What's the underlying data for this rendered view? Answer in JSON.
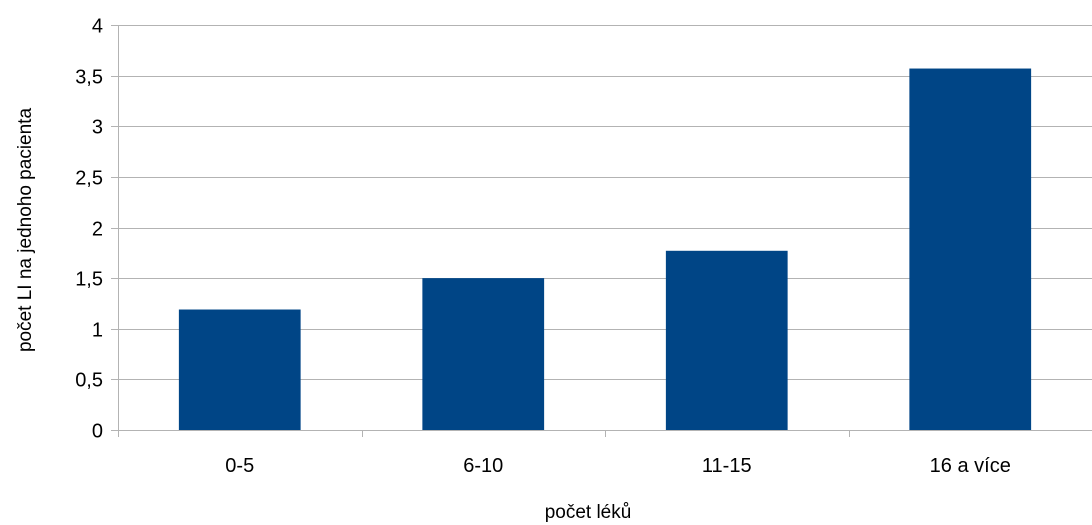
{
  "chart_data": {
    "type": "bar",
    "title": "",
    "xlabel": "počet léků",
    "ylabel": "počet LI na jednoho pacienta",
    "categories": [
      "0-5",
      "6-10",
      "11-15",
      "16 a více"
    ],
    "values": [
      1.19,
      1.5,
      1.77,
      3.57
    ],
    "ylim": [
      0,
      4
    ],
    "yticks": [
      0,
      0.5,
      1,
      1.5,
      2,
      2.5,
      3,
      3.5,
      4
    ],
    "ytick_labels": [
      "0",
      "0,5",
      "1",
      "1,5",
      "2",
      "2,5",
      "3",
      "3,5",
      "4"
    ],
    "grid": true,
    "legend": "none",
    "bar_color": "#004586"
  }
}
